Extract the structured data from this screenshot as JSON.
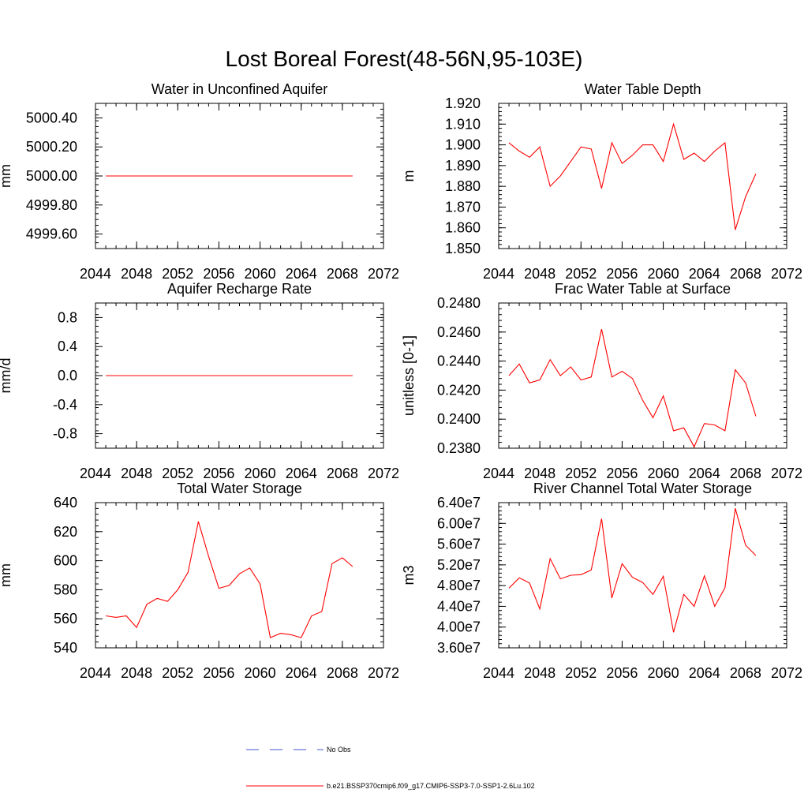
{
  "title": "Lost Boreal Forest(48-56N,95-103E)",
  "legend": {
    "placement": "bottom-center",
    "obs": {
      "label": "No Obs",
      "color": "#4455cc",
      "style": "dashed"
    },
    "model": {
      "label": "b.e21.BSSP370cmip6.f09_g17.CMIP6-SSP3-7.0-SSP1-2.6Lu.102",
      "color": "#ff0000",
      "style": "solid"
    }
  },
  "chart_data": [
    {
      "type": "line",
      "title": "Water in Unconfined Aquifer",
      "ylabel": "mm",
      "xlim": [
        2044,
        2072
      ],
      "xticks": [
        2044,
        2048,
        2052,
        2056,
        2060,
        2064,
        2068,
        2072
      ],
      "ylim": [
        4999.5,
        5000.5
      ],
      "yticks": [
        4999.6,
        4999.8,
        5000.0,
        5000.2,
        5000.4
      ],
      "ytick_labels": [
        "4999.60",
        "4999.80",
        "5000.00",
        "5000.20",
        "5000.40"
      ],
      "x": [
        2045,
        2046,
        2047,
        2048,
        2049,
        2050,
        2051,
        2052,
        2053,
        2054,
        2055,
        2056,
        2057,
        2058,
        2059,
        2060,
        2061,
        2062,
        2063,
        2064,
        2065,
        2066,
        2067,
        2068,
        2069
      ],
      "series": [
        {
          "color": "#ff0000",
          "values": [
            5000,
            5000,
            5000,
            5000,
            5000,
            5000,
            5000,
            5000,
            5000,
            5000,
            5000,
            5000,
            5000,
            5000,
            5000,
            5000,
            5000,
            5000,
            5000,
            5000,
            5000,
            5000,
            5000,
            5000,
            5000
          ]
        }
      ]
    },
    {
      "type": "line",
      "title": "Water Table Depth",
      "ylabel": "m",
      "xlim": [
        2044,
        2072
      ],
      "xticks": [
        2044,
        2048,
        2052,
        2056,
        2060,
        2064,
        2068,
        2072
      ],
      "ylim": [
        1.85,
        1.92
      ],
      "yticks": [
        1.85,
        1.86,
        1.87,
        1.88,
        1.89,
        1.9,
        1.91,
        1.92
      ],
      "ytick_labels": [
        "1.850",
        "1.860",
        "1.870",
        "1.880",
        "1.890",
        "1.900",
        "1.910",
        "1.920"
      ],
      "x": [
        2045,
        2046,
        2047,
        2048,
        2049,
        2050,
        2051,
        2052,
        2053,
        2054,
        2055,
        2056,
        2057,
        2058,
        2059,
        2060,
        2061,
        2062,
        2063,
        2064,
        2065,
        2066,
        2067,
        2068,
        2069
      ],
      "series": [
        {
          "color": "#ff0000",
          "values": [
            1.901,
            1.897,
            1.894,
            1.899,
            1.88,
            1.885,
            1.892,
            1.899,
            1.898,
            1.879,
            1.901,
            1.891,
            1.895,
            1.9,
            1.9,
            1.892,
            1.91,
            1.893,
            1.896,
            1.892,
            1.897,
            1.901,
            1.859,
            1.875,
            1.886
          ]
        }
      ]
    },
    {
      "type": "line",
      "title": "Aquifer Recharge Rate",
      "ylabel": "mm/d",
      "xlim": [
        2044,
        2072
      ],
      "xticks": [
        2044,
        2048,
        2052,
        2056,
        2060,
        2064,
        2068,
        2072
      ],
      "ylim": [
        -1.0,
        1.0
      ],
      "yticks": [
        -0.8,
        -0.4,
        0.0,
        0.4,
        0.8
      ],
      "ytick_labels": [
        "-0.8",
        "-0.4",
        "0.0",
        "0.4",
        "0.8"
      ],
      "x": [
        2045,
        2046,
        2047,
        2048,
        2049,
        2050,
        2051,
        2052,
        2053,
        2054,
        2055,
        2056,
        2057,
        2058,
        2059,
        2060,
        2061,
        2062,
        2063,
        2064,
        2065,
        2066,
        2067,
        2068,
        2069
      ],
      "series": [
        {
          "color": "#ff0000",
          "values": [
            0,
            0,
            0,
            0,
            0,
            0,
            0,
            0,
            0,
            0,
            0,
            0,
            0,
            0,
            0,
            0,
            0,
            0,
            0,
            0,
            0,
            0,
            0,
            0,
            0
          ]
        }
      ]
    },
    {
      "type": "line",
      "title": "Frac Water Table at Surface",
      "ylabel": "unitless [0-1]",
      "xlim": [
        2044,
        2072
      ],
      "xticks": [
        2044,
        2048,
        2052,
        2056,
        2060,
        2064,
        2068,
        2072
      ],
      "ylim": [
        0.238,
        0.248
      ],
      "yticks": [
        0.238,
        0.24,
        0.242,
        0.244,
        0.246,
        0.248
      ],
      "ytick_labels": [
        "0.2380",
        "0.2400",
        "0.2420",
        "0.2440",
        "0.2460",
        "0.2480"
      ],
      "x": [
        2045,
        2046,
        2047,
        2048,
        2049,
        2050,
        2051,
        2052,
        2053,
        2054,
        2055,
        2056,
        2057,
        2058,
        2059,
        2060,
        2061,
        2062,
        2063,
        2064,
        2065,
        2066,
        2067,
        2068,
        2069
      ],
      "series": [
        {
          "color": "#ff0000",
          "values": [
            0.243,
            0.2438,
            0.2425,
            0.2427,
            0.2441,
            0.243,
            0.2436,
            0.2427,
            0.2429,
            0.2462,
            0.2429,
            0.2433,
            0.2428,
            0.2413,
            0.2401,
            0.2416,
            0.2392,
            0.2394,
            0.2381,
            0.2397,
            0.2396,
            0.2392,
            0.2434,
            0.2425,
            0.2402
          ]
        }
      ]
    },
    {
      "type": "line",
      "title": "Total Water Storage",
      "ylabel": "mm",
      "xlim": [
        2044,
        2072
      ],
      "xticks": [
        2044,
        2048,
        2052,
        2056,
        2060,
        2064,
        2068,
        2072
      ],
      "ylim": [
        540,
        640
      ],
      "yticks": [
        540,
        560,
        580,
        600,
        620,
        640
      ],
      "ytick_labels": [
        "540",
        "560",
        "580",
        "600",
        "620",
        "640"
      ],
      "x": [
        2045,
        2046,
        2047,
        2048,
        2049,
        2050,
        2051,
        2052,
        2053,
        2054,
        2055,
        2056,
        2057,
        2058,
        2059,
        2060,
        2061,
        2062,
        2063,
        2064,
        2065,
        2066,
        2067,
        2068,
        2069
      ],
      "series": [
        {
          "color": "#ff0000",
          "values": [
            562,
            561,
            562,
            554,
            570,
            574,
            572,
            580,
            592,
            627,
            603,
            581,
            583,
            591,
            595,
            584,
            547,
            550,
            549,
            547,
            562,
            565,
            598,
            602,
            596
          ]
        }
      ]
    },
    {
      "type": "line",
      "title": "River Channel Total Water Storage",
      "ylabel": "m3",
      "xlim": [
        2044,
        2072
      ],
      "xticks": [
        2044,
        2048,
        2052,
        2056,
        2060,
        2064,
        2068,
        2072
      ],
      "ylim": [
        36000000,
        64000000
      ],
      "yticks": [
        36000000,
        40000000,
        44000000,
        48000000,
        52000000,
        56000000,
        60000000,
        64000000
      ],
      "ytick_labels": [
        "3.60e7",
        "4.00e7",
        "4.40e7",
        "4.80e7",
        "5.20e7",
        "5.60e7",
        "6.00e7",
        "6.40e7"
      ],
      "x": [
        2045,
        2046,
        2047,
        2048,
        2049,
        2050,
        2051,
        2052,
        2053,
        2054,
        2055,
        2056,
        2057,
        2058,
        2059,
        2060,
        2061,
        2062,
        2063,
        2064,
        2065,
        2066,
        2067,
        2068,
        2069
      ],
      "series": [
        {
          "color": "#ff0000",
          "values": [
            47500000,
            49500000,
            48500000,
            43500000,
            53200000,
            49300000,
            50000000,
            50100000,
            51000000,
            60900000,
            45600000,
            52200000,
            49600000,
            48600000,
            46300000,
            49800000,
            39000000,
            46300000,
            44000000,
            49900000,
            44000000,
            47600000,
            62900000,
            55800000,
            53800000
          ]
        }
      ]
    }
  ]
}
